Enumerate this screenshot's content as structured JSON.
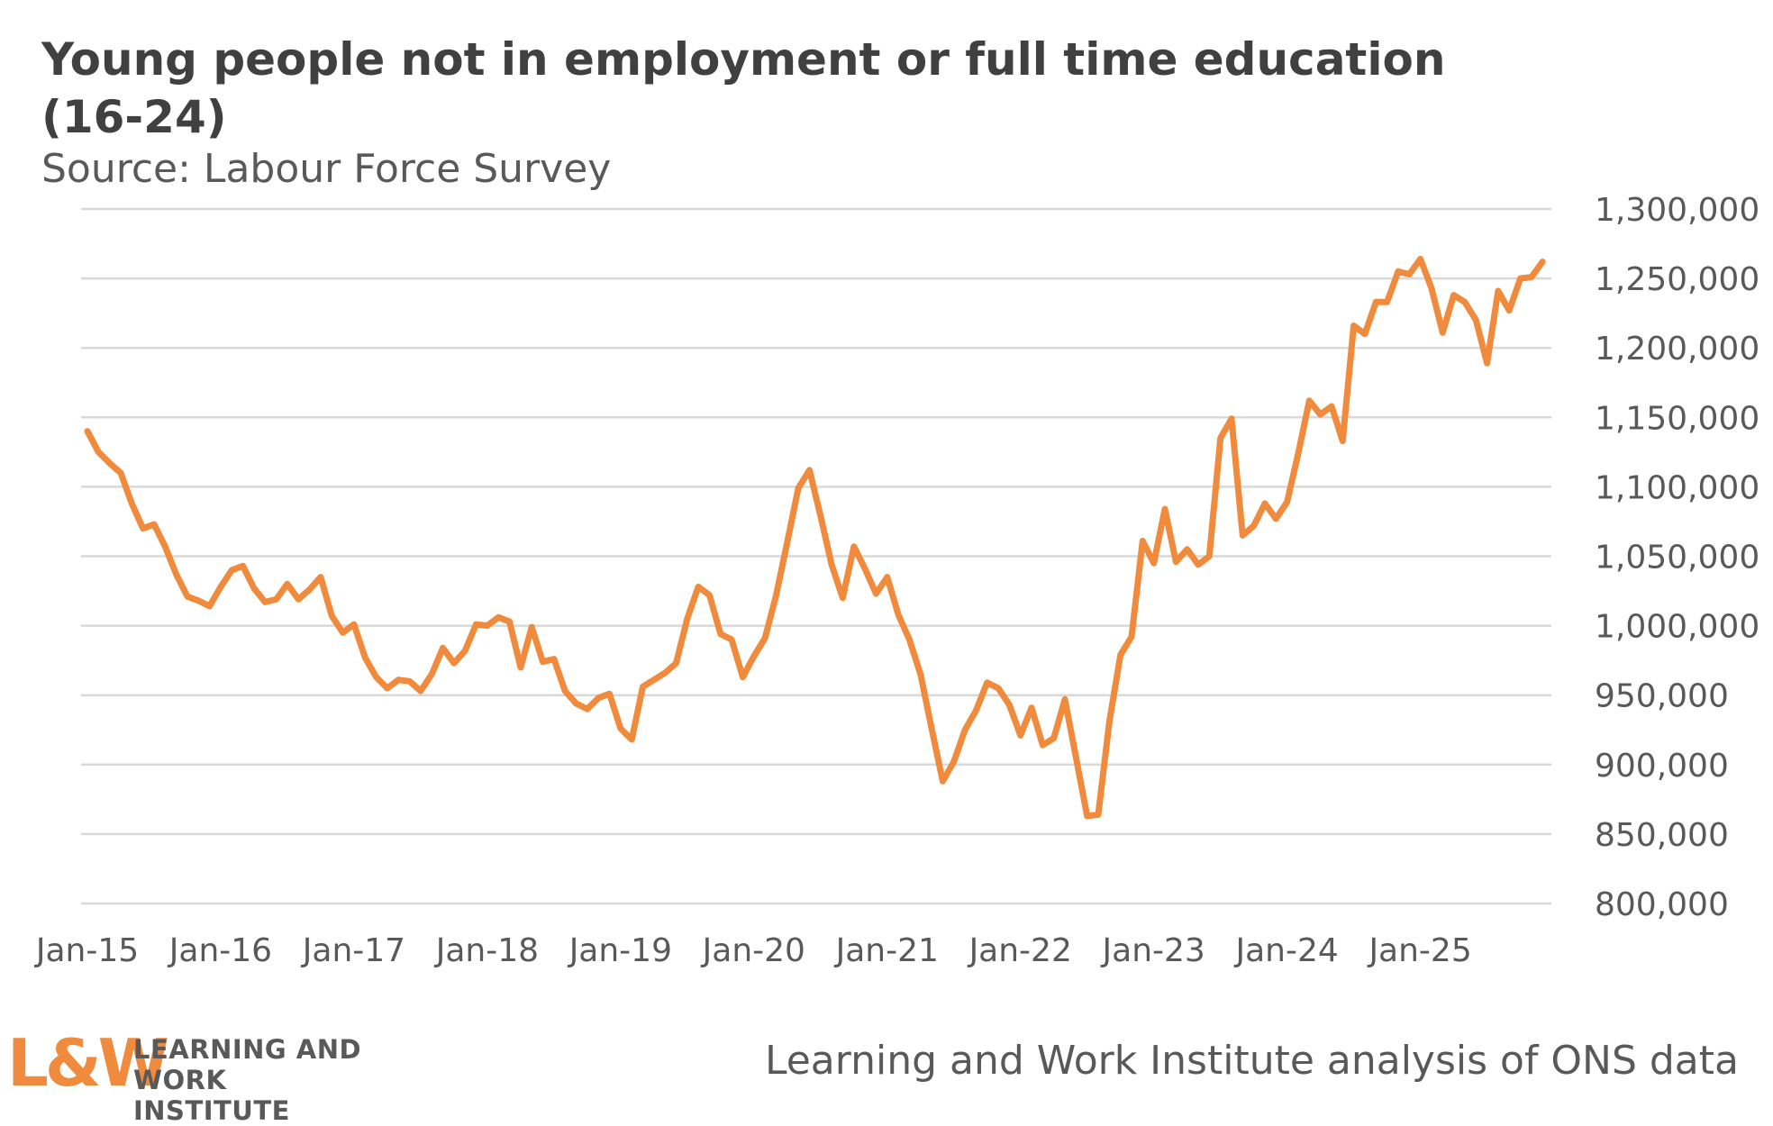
{
  "chart_data": {
    "type": "line",
    "title": "Young people not in employment or full time education (16-24)",
    "subtitle": "Source: Labour Force Survey",
    "xlabel": "",
    "ylabel": "",
    "ylim": [
      800000,
      1300000
    ],
    "yticks": [
      "1,300,000",
      "1,250,000",
      "1,200,000",
      "1,150,000",
      "1,100,000",
      "1,050,000",
      "1,000,000",
      "950,000",
      "900,000",
      "850,000",
      "800,000"
    ],
    "ytick_values": [
      1300000,
      1250000,
      1200000,
      1150000,
      1100000,
      1050000,
      1000000,
      950000,
      900000,
      850000,
      800000
    ],
    "xticks": [
      "Jan-15",
      "Jan-16",
      "Jan-17",
      "Jan-18",
      "Jan-19",
      "Jan-20",
      "Jan-21",
      "Jan-22",
      "Jan-23",
      "Jan-24",
      "Jan-25"
    ],
    "grid": true,
    "legend": "none",
    "series": [
      {
        "color": "#f08a3c",
        "values": [
          1140000,
          1125000,
          1117000,
          1110000,
          1088000,
          1070000,
          1073000,
          1057000,
          1037000,
          1021000,
          1018000,
          1014000,
          1028000,
          1040000,
          1043000,
          1027000,
          1017000,
          1019000,
          1030000,
          1019000,
          1026000,
          1035000,
          1007000,
          995000,
          1001000,
          977000,
          963000,
          955000,
          961000,
          960000,
          953000,
          965000,
          984000,
          973000,
          982000,
          1001000,
          1000000,
          1006000,
          1003000,
          970000,
          999000,
          974000,
          976000,
          953000,
          944000,
          940000,
          948000,
          951000,
          926000,
          918000,
          956000,
          961000,
          966000,
          973000,
          1005000,
          1028000,
          1022000,
          994000,
          990000,
          963000,
          978000,
          991000,
          1022000,
          1060000,
          1099000,
          1112000,
          1079000,
          1044000,
          1020000,
          1057000,
          1041000,
          1023000,
          1035000,
          1008000,
          990000,
          965000,
          926000,
          888000,
          902000,
          925000,
          939000,
          959000,
          955000,
          943000,
          921000,
          941000,
          914000,
          919000,
          947000,
          905000,
          863000,
          864000,
          931000,
          979000,
          992000,
          1061000,
          1045000,
          1084000,
          1046000,
          1055000,
          1044000,
          1050000,
          1135000,
          1149000,
          1065000,
          1072000,
          1088000,
          1077000,
          1089000,
          1124000,
          1162000,
          1152000,
          1158000,
          1133000,
          1216000,
          1210000,
          1233000,
          1233000,
          1255000,
          1253000,
          1264000,
          1243000,
          1211000,
          1238000,
          1233000,
          1220000,
          1189000,
          1241000,
          1227000,
          1250000,
          1251000,
          1262000
        ]
      }
    ]
  },
  "footer": {
    "logo_mark": "L&W",
    "logo_line1": "LEARNING AND",
    "logo_line2": "WORK INSTITUTE",
    "credit": "Learning and Work Institute analysis of ONS data"
  }
}
